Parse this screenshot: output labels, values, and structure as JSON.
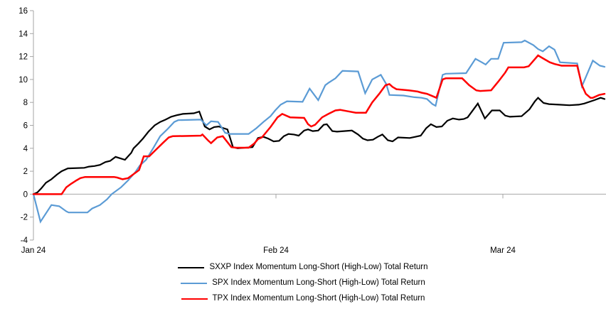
{
  "chart_data": {
    "type": "line",
    "title": "",
    "xlabel": "",
    "ylabel": "",
    "ylim": [
      -4,
      16
    ],
    "y_tick_step": 2,
    "y_tick_labels": [
      "16",
      "14",
      "12",
      "10",
      "8",
      "6",
      "4",
      "2",
      "0",
      "-2",
      "-4"
    ],
    "x_range_days": [
      0,
      73
    ],
    "x_ticks": [
      {
        "label": "Jan 24",
        "day": 0
      },
      {
        "label": "Feb 24",
        "day": 31
      },
      {
        "label": "Mar 24",
        "day": 60
      }
    ],
    "grid": "zero-line-only",
    "legend_position": "bottom-center",
    "axis_color": "#a6a6a6",
    "zero_line_color": "#a6a6a6",
    "series": [
      {
        "name": "SXXP Index Momentum Long-Short (High-Low) Total Return",
        "color": "#000000",
        "points": [
          [
            0,
            0
          ],
          [
            0.5,
            0.15
          ],
          [
            1,
            0.5
          ],
          [
            1.6,
            1.0
          ],
          [
            2.3,
            1.3
          ],
          [
            3,
            1.7
          ],
          [
            3.6,
            2.0
          ],
          [
            4.4,
            2.25
          ],
          [
            6.5,
            2.3
          ],
          [
            7.1,
            2.4
          ],
          [
            7.8,
            2.45
          ],
          [
            8.5,
            2.55
          ],
          [
            9.2,
            2.8
          ],
          [
            9.8,
            2.9
          ],
          [
            10.5,
            3.25
          ],
          [
            11.2,
            3.1
          ],
          [
            11.7,
            3.0
          ],
          [
            12.5,
            3.6
          ],
          [
            12.8,
            4.0
          ],
          [
            13.4,
            4.4
          ],
          [
            14,
            4.85
          ],
          [
            14.7,
            5.45
          ],
          [
            15.5,
            6.0
          ],
          [
            16.2,
            6.3
          ],
          [
            16.9,
            6.5
          ],
          [
            17.6,
            6.75
          ],
          [
            18.4,
            6.9
          ],
          [
            19.1,
            7.0
          ],
          [
            20.5,
            7.05
          ],
          [
            21.2,
            7.2
          ],
          [
            21.9,
            5.9
          ],
          [
            22.5,
            5.65
          ],
          [
            23.1,
            5.85
          ],
          [
            23.7,
            5.9
          ],
          [
            24.3,
            5.75
          ],
          [
            24.8,
            5.65
          ],
          [
            25.5,
            4.1
          ],
          [
            26.1,
            4.0
          ],
          [
            28,
            4.1
          ],
          [
            28.7,
            4.9
          ],
          [
            29.4,
            5.0
          ],
          [
            30,
            4.85
          ],
          [
            30.7,
            4.6
          ],
          [
            31.4,
            4.65
          ],
          [
            32,
            5.05
          ],
          [
            32.6,
            5.25
          ],
          [
            33.3,
            5.2
          ],
          [
            33.9,
            5.1
          ],
          [
            34.6,
            5.55
          ],
          [
            35.1,
            5.65
          ],
          [
            35.7,
            5.5
          ],
          [
            36.4,
            5.55
          ],
          [
            37.1,
            6.05
          ],
          [
            37.5,
            6.1
          ],
          [
            38.2,
            5.5
          ],
          [
            38.8,
            5.45
          ],
          [
            40.7,
            5.55
          ],
          [
            41.5,
            5.2
          ],
          [
            42.1,
            4.85
          ],
          [
            42.7,
            4.7
          ],
          [
            43.4,
            4.75
          ],
          [
            44,
            5.0
          ],
          [
            44.6,
            5.2
          ],
          [
            45.3,
            4.7
          ],
          [
            45.9,
            4.6
          ],
          [
            46.6,
            4.95
          ],
          [
            48.1,
            4.9
          ],
          [
            48.8,
            5.0
          ],
          [
            49.5,
            5.1
          ],
          [
            50.2,
            5.75
          ],
          [
            50.8,
            6.1
          ],
          [
            51.5,
            5.85
          ],
          [
            52.2,
            5.9
          ],
          [
            52.9,
            6.4
          ],
          [
            53.6,
            6.6
          ],
          [
            54.4,
            6.5
          ],
          [
            55,
            6.55
          ],
          [
            55.5,
            6.7
          ],
          [
            56.8,
            7.9
          ],
          [
            57.7,
            6.6
          ],
          [
            58.6,
            7.3
          ],
          [
            59.6,
            7.3
          ],
          [
            60.3,
            6.85
          ],
          [
            60.9,
            6.75
          ],
          [
            62.4,
            6.8
          ],
          [
            63.4,
            7.4
          ],
          [
            64.1,
            8.1
          ],
          [
            64.5,
            8.4
          ],
          [
            65.2,
            7.95
          ],
          [
            65.9,
            7.85
          ],
          [
            67.2,
            7.8
          ],
          [
            68.5,
            7.75
          ],
          [
            69.7,
            7.8
          ],
          [
            70.4,
            7.9
          ],
          [
            71.7,
            8.2
          ],
          [
            72.5,
            8.4
          ],
          [
            73,
            8.3
          ]
        ]
      },
      {
        "name": "SPX Index Momentum Long-Short (High-Low) Total Return",
        "color": "#5b9bd5",
        "points": [
          [
            0,
            0
          ],
          [
            0.9,
            -2.4
          ],
          [
            2.3,
            -0.95
          ],
          [
            3.3,
            -1.05
          ],
          [
            4.2,
            -1.5
          ],
          [
            4.5,
            -1.6
          ],
          [
            6.9,
            -1.6
          ],
          [
            7.5,
            -1.25
          ],
          [
            8.5,
            -0.95
          ],
          [
            9.4,
            -0.45
          ],
          [
            10,
            0
          ],
          [
            11.2,
            0.6
          ],
          [
            12.1,
            1.2
          ],
          [
            13,
            1.9
          ],
          [
            13.6,
            2.5
          ],
          [
            14.4,
            3.0
          ],
          [
            15.3,
            4.0
          ],
          [
            16.2,
            5.05
          ],
          [
            17.1,
            5.65
          ],
          [
            18,
            6.3
          ],
          [
            18.5,
            6.45
          ],
          [
            21.4,
            6.5
          ],
          [
            22.1,
            6.0
          ],
          [
            22.7,
            6.35
          ],
          [
            23.6,
            6.3
          ],
          [
            24.5,
            5.35
          ],
          [
            25.1,
            5.25
          ],
          [
            27.5,
            5.25
          ],
          [
            28.5,
            5.75
          ],
          [
            29.4,
            6.3
          ],
          [
            30.3,
            6.8
          ],
          [
            30.9,
            7.3
          ],
          [
            31.6,
            7.8
          ],
          [
            32.4,
            8.1
          ],
          [
            34.4,
            8.05
          ],
          [
            35.3,
            9.2
          ],
          [
            36.4,
            8.2
          ],
          [
            37.3,
            9.5
          ],
          [
            37.7,
            9.7
          ],
          [
            38.6,
            10.1
          ],
          [
            39.5,
            10.75
          ],
          [
            41.5,
            10.7
          ],
          [
            42.4,
            8.8
          ],
          [
            43.3,
            10.0
          ],
          [
            44.4,
            10.4
          ],
          [
            45.1,
            9.6
          ],
          [
            45.5,
            8.65
          ],
          [
            47.3,
            8.6
          ],
          [
            48.7,
            8.45
          ],
          [
            49.6,
            8.4
          ],
          [
            50.3,
            8.3
          ],
          [
            51,
            7.85
          ],
          [
            51.4,
            7.7
          ],
          [
            52.3,
            10.4
          ],
          [
            52.7,
            10.5
          ],
          [
            55.3,
            10.55
          ],
          [
            56.5,
            11.8
          ],
          [
            57.3,
            11.5
          ],
          [
            57.8,
            11.3
          ],
          [
            58.5,
            11.8
          ],
          [
            59.4,
            11.8
          ],
          [
            60.1,
            13.2
          ],
          [
            62.4,
            13.25
          ],
          [
            62.8,
            13.4
          ],
          [
            63.9,
            13.0
          ],
          [
            64.5,
            12.65
          ],
          [
            65.1,
            12.45
          ],
          [
            65.9,
            12.9
          ],
          [
            66.6,
            12.6
          ],
          [
            67.3,
            11.5
          ],
          [
            69.5,
            11.4
          ],
          [
            70.1,
            9.4
          ],
          [
            71.5,
            11.65
          ],
          [
            72.4,
            11.2
          ],
          [
            73,
            11.1
          ]
        ]
      },
      {
        "name": "TPX Index Momentum Long-Short (High-Low) Total Return",
        "color": "#ff0000",
        "points": [
          [
            0,
            0
          ],
          [
            3.6,
            0
          ],
          [
            4.2,
            0.6
          ],
          [
            4.8,
            0.9
          ],
          [
            5.5,
            1.2
          ],
          [
            6,
            1.4
          ],
          [
            6.6,
            1.5
          ],
          [
            10.3,
            1.5
          ],
          [
            10.7,
            1.45
          ],
          [
            11.4,
            1.3
          ],
          [
            12.1,
            1.4
          ],
          [
            12.5,
            1.6
          ],
          [
            13.5,
            2.1
          ],
          [
            14.1,
            3.3
          ],
          [
            14.8,
            3.3
          ],
          [
            15.7,
            3.9
          ],
          [
            16.6,
            4.5
          ],
          [
            17.3,
            4.95
          ],
          [
            17.8,
            5.05
          ],
          [
            21.4,
            5.1
          ],
          [
            21.6,
            5.2
          ],
          [
            22.3,
            4.7
          ],
          [
            22.7,
            4.45
          ],
          [
            23.5,
            4.95
          ],
          [
            24.2,
            5.05
          ],
          [
            25.3,
            4.1
          ],
          [
            25.9,
            4.05
          ],
          [
            27.5,
            4.05
          ],
          [
            28.2,
            4.4
          ],
          [
            28.7,
            4.8
          ],
          [
            29.2,
            4.95
          ],
          [
            30.3,
            5.85
          ],
          [
            31.2,
            6.7
          ],
          [
            31.8,
            7.0
          ],
          [
            32.8,
            6.7
          ],
          [
            34.6,
            6.65
          ],
          [
            35.1,
            6.1
          ],
          [
            35.5,
            5.9
          ],
          [
            36,
            6.05
          ],
          [
            36.9,
            6.7
          ],
          [
            37.7,
            7.0
          ],
          [
            38.6,
            7.3
          ],
          [
            39.2,
            7.35
          ],
          [
            40,
            7.25
          ],
          [
            41.2,
            7.1
          ],
          [
            42.5,
            7.1
          ],
          [
            43.3,
            8.0
          ],
          [
            44.2,
            8.75
          ],
          [
            45,
            9.5
          ],
          [
            45.5,
            9.6
          ],
          [
            45.9,
            9.35
          ],
          [
            46.4,
            9.15
          ],
          [
            48,
            9.05
          ],
          [
            49.1,
            8.95
          ],
          [
            49.6,
            8.85
          ],
          [
            50.3,
            8.75
          ],
          [
            51,
            8.55
          ],
          [
            51.5,
            8.4
          ],
          [
            52.3,
            10.0
          ],
          [
            52.7,
            10.1
          ],
          [
            54.8,
            10.1
          ],
          [
            55.7,
            9.5
          ],
          [
            56.6,
            9.05
          ],
          [
            57.1,
            9.0
          ],
          [
            58.5,
            9.05
          ],
          [
            59.4,
            9.8
          ],
          [
            60.3,
            10.6
          ],
          [
            60.7,
            11.05
          ],
          [
            62.7,
            11.05
          ],
          [
            63.3,
            11.15
          ],
          [
            64.5,
            12.1
          ],
          [
            65.1,
            11.85
          ],
          [
            66,
            11.5
          ],
          [
            66.6,
            11.35
          ],
          [
            67.5,
            11.2
          ],
          [
            69.5,
            11.2
          ],
          [
            70.1,
            9.5
          ],
          [
            70.6,
            8.75
          ],
          [
            71.2,
            8.4
          ],
          [
            71.5,
            8.4
          ],
          [
            72.3,
            8.65
          ],
          [
            73,
            8.75
          ]
        ]
      }
    ]
  }
}
